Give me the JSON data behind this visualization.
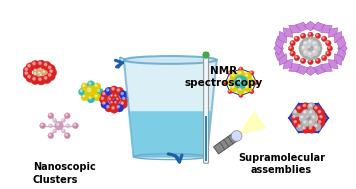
{
  "bg_color": "#ffffff",
  "arrow_color": "#1a5fa8",
  "beaker_body_color": "#d0eaf5",
  "beaker_edge_color": "#6aaccf",
  "beaker_liquid_color": "#5ec4df",
  "red_ball": "#dd2020",
  "blue_ball": "#2233cc",
  "yellow_ball": "#ddcc00",
  "teal_ball": "#33bbaa",
  "pink_color": "#cc88aa",
  "gray_ball": "#999999",
  "purple_crystal": "#cc88dd",
  "dark_gray": "#555555",
  "beige_ball": "#d4a870",
  "label_left": "Nanoscopic\nClusters",
  "label_right": "Supramolecular\nassemblies",
  "nmr_label": "NMR\nspectroscopy",
  "font_size": 7.0,
  "font_size_nmr": 7.5
}
